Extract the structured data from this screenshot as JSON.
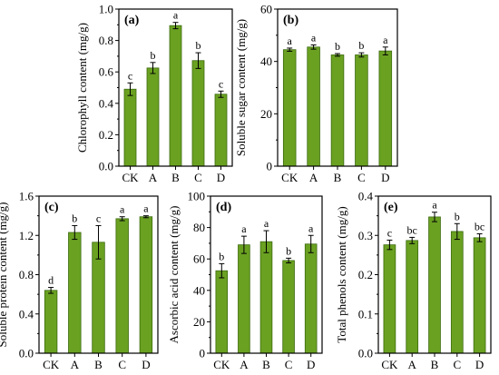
{
  "chart_data": [
    {
      "panel": "(a)",
      "type": "bar",
      "categories": [
        "CK",
        "A",
        "B",
        "C",
        "D"
      ],
      "values": [
        0.49,
        0.625,
        0.895,
        0.672,
        0.458
      ],
      "errors": [
        0.04,
        0.035,
        0.02,
        0.05,
        0.02
      ],
      "letters": [
        "c",
        "b",
        "a",
        "b",
        "c"
      ],
      "ylabel": "Chlorophyll content (mg/g)",
      "ylim": [
        0,
        1.0
      ],
      "yticks": [
        0,
        0.2,
        0.4,
        0.6,
        0.8,
        1.0
      ],
      "yticklabels": [
        "0.0",
        "0.2",
        "0.4",
        "0.6",
        "0.8",
        "1.0"
      ],
      "color": "#6aa121"
    },
    {
      "panel": "(b)",
      "type": "bar",
      "categories": [
        "CK",
        "A",
        "B",
        "C",
        "D"
      ],
      "values": [
        44.5,
        45.5,
        42.5,
        42.5,
        44.0
      ],
      "errors": [
        0.6,
        0.8,
        0.5,
        0.8,
        1.5
      ],
      "letters": [
        "a",
        "a",
        "b",
        "b",
        "a"
      ],
      "ylabel": "Soluble sugar content (mg/g)",
      "ylim": [
        0,
        60
      ],
      "yticks": [
        0,
        20,
        40,
        60
      ],
      "yticklabels": [
        "0",
        "20",
        "40",
        "60"
      ],
      "color": "#6aa121"
    },
    {
      "panel": "(c)",
      "type": "bar",
      "categories": [
        "CK",
        "A",
        "B",
        "C",
        "D"
      ],
      "values": [
        0.64,
        1.23,
        1.13,
        1.37,
        1.39
      ],
      "errors": [
        0.03,
        0.07,
        0.17,
        0.02,
        0.01
      ],
      "letters": [
        "d",
        "b",
        "c",
        "a",
        "a"
      ],
      "ylabel": "Soluble protein content (mg/g)",
      "ylim": [
        0,
        1.6
      ],
      "yticks": [
        0,
        0.4,
        0.8,
        1.2,
        1.6
      ],
      "yticklabels": [
        "0.0",
        "0.4",
        "0.8",
        "1.2",
        "1.6"
      ],
      "color": "#6aa121"
    },
    {
      "panel": "(d)",
      "type": "bar",
      "categories": [
        "CK",
        "A",
        "B",
        "C",
        "D"
      ],
      "values": [
        52.5,
        69,
        71,
        59,
        69.5
      ],
      "errors": [
        4.5,
        5.5,
        7,
        1.5,
        5.5
      ],
      "letters": [
        "b",
        "a",
        "a",
        "b",
        "a"
      ],
      "ylabel": "Ascorbic acid content (mg/g)",
      "ylim": [
        0,
        100
      ],
      "yticks": [
        0,
        20,
        40,
        60,
        80,
        100
      ],
      "yticklabels": [
        "0",
        "20",
        "40",
        "60",
        "80",
        "100"
      ],
      "color": "#6aa121"
    },
    {
      "panel": "(e)",
      "type": "bar",
      "categories": [
        "CK",
        "A",
        "B",
        "C",
        "D"
      ],
      "values": [
        0.276,
        0.287,
        0.347,
        0.31,
        0.294
      ],
      "errors": [
        0.012,
        0.008,
        0.012,
        0.02,
        0.01
      ],
      "letters": [
        "c",
        "bc",
        "a",
        "b",
        "bc"
      ],
      "ylabel": "Total phenols content (mg/g)",
      "ylim": [
        0,
        0.4
      ],
      "yticks": [
        0,
        0.1,
        0.2,
        0.3,
        0.4
      ],
      "yticklabels": [
        "0.0",
        "0.1",
        "0.2",
        "0.3",
        "0.4"
      ],
      "color": "#6aa121"
    }
  ]
}
